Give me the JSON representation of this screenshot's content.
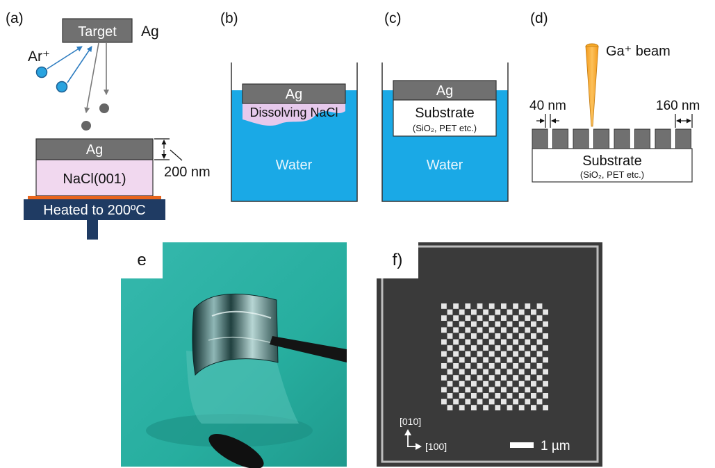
{
  "colors": {
    "water": "#1aa9e6",
    "metal": "#707070",
    "nacl": "#f1d8ef",
    "heater": "#1f3b63",
    "heater_strip": "#e8651c",
    "ion": "#29a3df",
    "ion_arrow": "#2d7cc0",
    "ga_beam": "#f6a827",
    "photo_bg": "#2bb3a7",
    "sem_bg": "#3a3a3a"
  },
  "panel_a": {
    "label": "(a)",
    "target": "Target",
    "element": "Ag",
    "ion": "Ar⁺",
    "film": "Ag",
    "substrate": "NaCl(001)",
    "thickness": "200 nm",
    "heater": "Heated to 200ºC"
  },
  "panel_b": {
    "label": "(b)",
    "film": "Ag",
    "dissolving": "Dissolving NaCl",
    "water": "Water"
  },
  "panel_c": {
    "label": "(c)",
    "film": "Ag",
    "substrate": "Substrate",
    "substrate_note": "(SiO₂, PET etc.)",
    "water": "Water"
  },
  "panel_d": {
    "label": "(d)",
    "beam": "Ga⁺ beam",
    "gap": "40 nm",
    "pitch": "160 nm",
    "substrate": "Substrate",
    "substrate_note": "(SiO₂, PET etc.)"
  },
  "panel_e": {
    "label": "e"
  },
  "panel_f": {
    "label": "f)",
    "axis_y": "[010]",
    "axis_x": "[100]",
    "scale": "1 µm"
  }
}
